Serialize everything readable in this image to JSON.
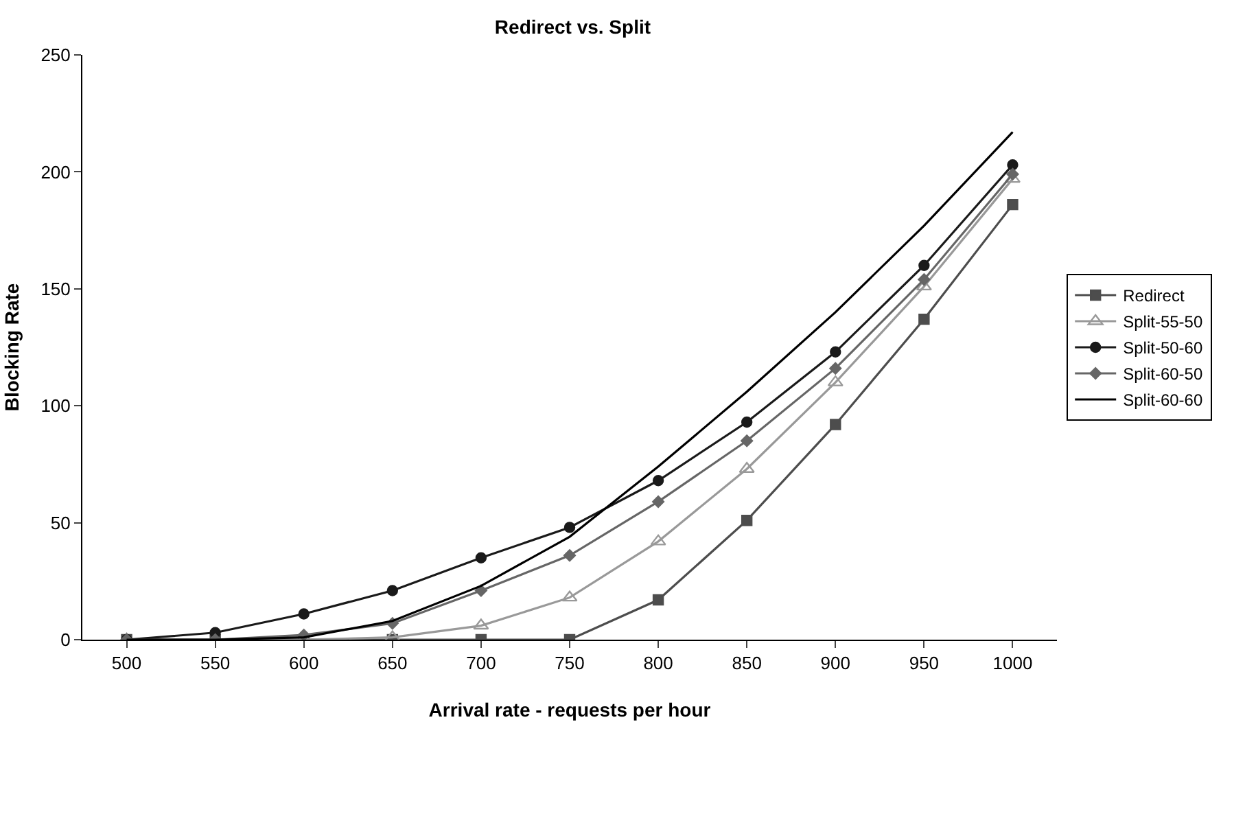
{
  "chart_data": {
    "type": "line",
    "title": "Redirect vs. Split",
    "xlabel": "Arrival rate - requests per hour",
    "ylabel": "Blocking Rate",
    "categories": [
      "500",
      "550",
      "600",
      "650",
      "700",
      "750",
      "800",
      "850",
      "900",
      "950",
      "1000"
    ],
    "ylim": [
      0,
      250
    ],
    "yticks": [
      0,
      50,
      100,
      150,
      200,
      250
    ],
    "grid": false,
    "legend": "right",
    "line_style": "solid",
    "series": [
      {
        "name": "Redirect",
        "color": "#4d4d4d",
        "marker": "square",
        "values": [
          0,
          0,
          0,
          0,
          0,
          0,
          17,
          51,
          92,
          137,
          186
        ]
      },
      {
        "name": "Split-55-50",
        "color": "#999999",
        "marker": "triangle",
        "values": [
          0,
          0,
          0,
          1,
          6,
          18,
          42,
          73,
          110,
          151,
          197
        ]
      },
      {
        "name": "Split-50-60",
        "color": "#1a1a1a",
        "marker": "circle",
        "values": [
          0,
          3,
          11,
          21,
          35,
          48,
          68,
          93,
          123,
          160,
          203
        ]
      },
      {
        "name": "Split-60-50",
        "color": "#666666",
        "marker": "diamond",
        "values": [
          0,
          0,
          2,
          7,
          21,
          36,
          59,
          85,
          116,
          154,
          199
        ]
      },
      {
        "name": "Split-60-60",
        "color": "#000000",
        "marker": "none",
        "values": [
          0,
          0,
          1,
          8,
          23,
          44,
          74,
          106,
          140,
          177,
          217
        ]
      }
    ]
  }
}
